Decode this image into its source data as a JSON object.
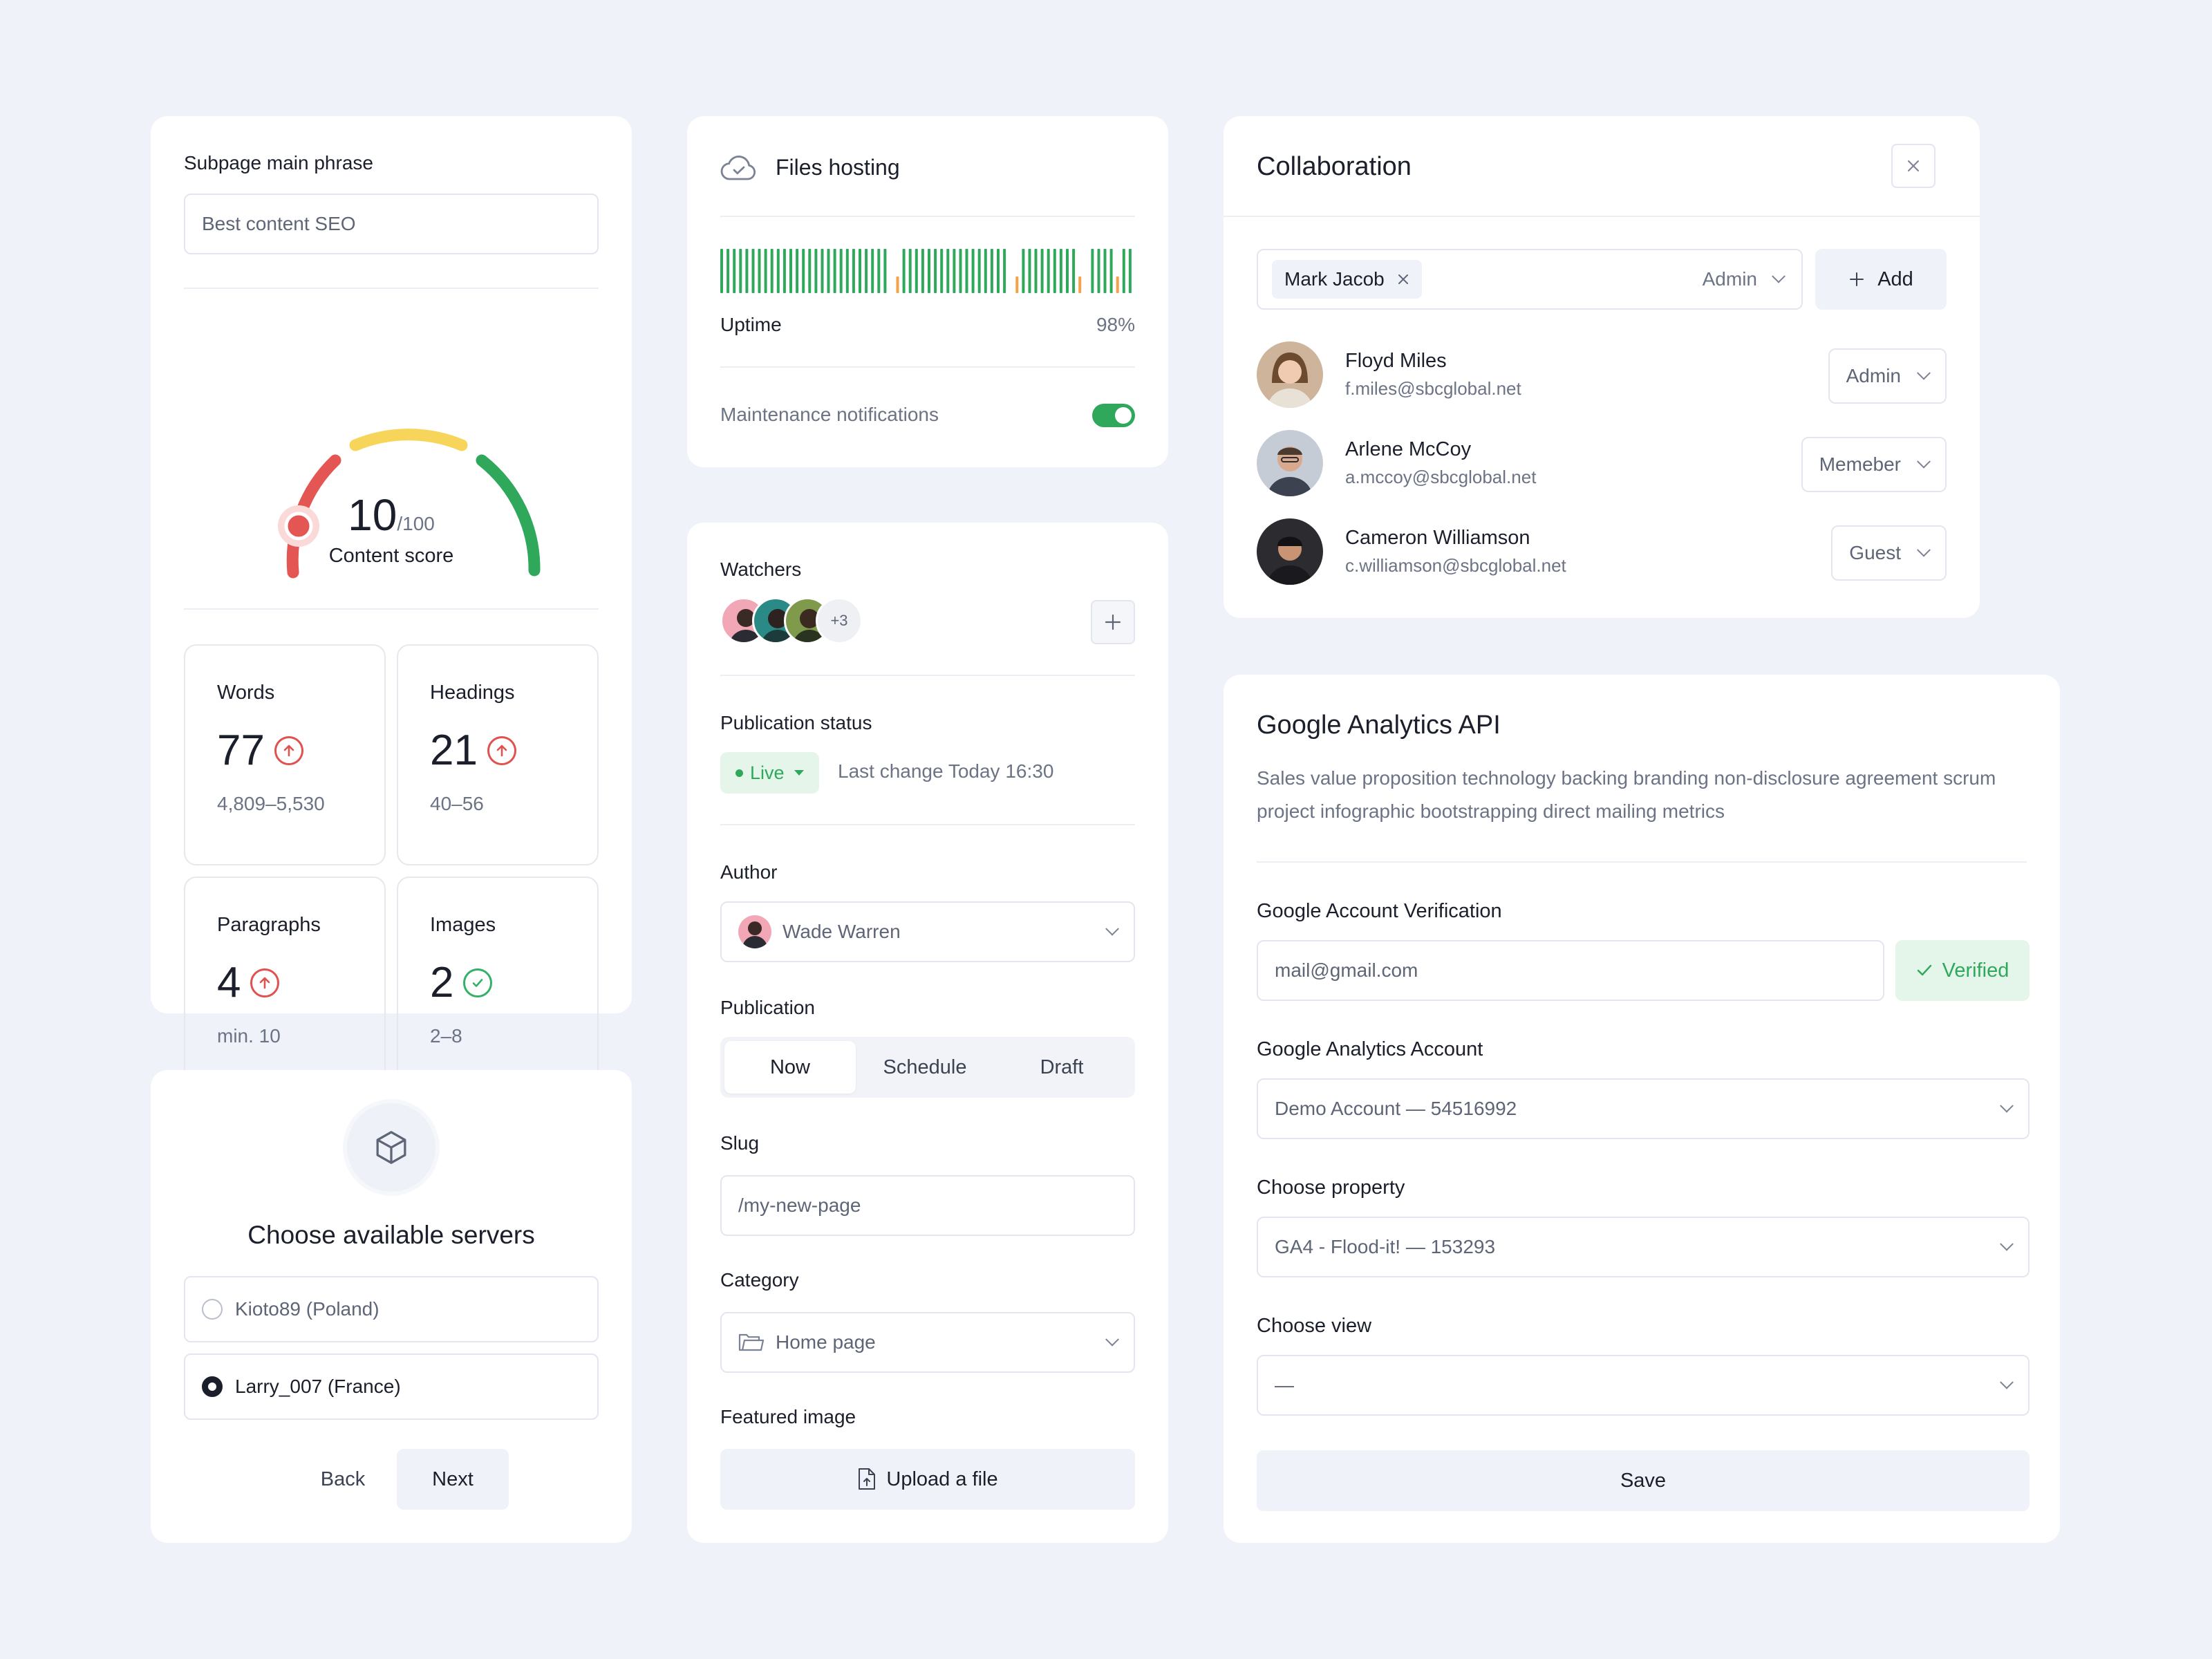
{
  "seo": {
    "phrase_label": "Subpage main phrase",
    "phrase_value": "Best content SEO",
    "score": "10",
    "score_max": "/100",
    "score_label": "Content score",
    "score_value": 10,
    "metrics": [
      {
        "title": "Words",
        "value": "77",
        "range": "4,809–5,530",
        "status": "up"
      },
      {
        "title": "Headings",
        "value": "21",
        "range": "40–56",
        "status": "up"
      },
      {
        "title": "Paragraphs",
        "value": "4",
        "range": "min. 10",
        "status": "up"
      },
      {
        "title": "Images",
        "value": "2",
        "range": "2–8",
        "status": "ok"
      }
    ]
  },
  "servers": {
    "title": "Choose available servers",
    "options": [
      "Kioto89 (Poland)",
      "Larry_007 (France)"
    ],
    "selected": "Larry_007 (France)",
    "back_label": "Back",
    "next_label": "Next"
  },
  "hosting": {
    "title": "Files hosting",
    "uptime_label": "Uptime",
    "uptime_value": "98%",
    "maintenance_label": "Maintenance notifications",
    "maintenance_on": true
  },
  "publish": {
    "watchers_label": "Watchers",
    "watchers_more": "+3",
    "status_label": "Publication status",
    "status_value": "Live",
    "last_change": "Last change Today 16:30",
    "author_label": "Author",
    "author_value": "Wade Warren",
    "publication_label": "Publication",
    "publication_options": [
      "Now",
      "Schedule",
      "Draft"
    ],
    "publication_selected": "Now",
    "slug_label": "Slug",
    "slug_value": "/my-new-page",
    "category_label": "Category",
    "category_value": "Home page",
    "featured_label": "Featured image",
    "upload_label": "Upload a file"
  },
  "collab": {
    "title": "Collaboration",
    "invitee": "Mark Jacob",
    "invite_role": "Admin",
    "add_label": "Add",
    "members": [
      {
        "name": "Floyd Miles",
        "email": "f.miles@sbcglobal.net",
        "role": "Admin"
      },
      {
        "name": "Arlene McCoy",
        "email": "a.mccoy@sbcglobal.net",
        "role": "Memeber"
      },
      {
        "name": "Cameron Williamson",
        "email": "c.williamson@sbcglobal.net",
        "role": "Guest"
      }
    ]
  },
  "analytics": {
    "title": "Google Analytics API",
    "description": "Sales value proposition technology backing branding non-disclosure agreement scrum project infographic bootstrapping direct mailing metrics",
    "verify_label": "Google Account Verification",
    "email_value": "mail@gmail.com",
    "verified_label": "Verified",
    "account_label": "Google Analytics Account",
    "account_value": "Demo Account — 54516992",
    "property_label": "Choose property",
    "property_value": "GA4 - Flood-it! — 153293",
    "view_label": "Choose view",
    "view_value": "—",
    "save_label": "Save"
  },
  "colors": {
    "background": "#eff2f9",
    "green": "#2fa85c",
    "orange": "#f4a24a",
    "red": "#e45653",
    "yellow": "#f7d55a"
  }
}
